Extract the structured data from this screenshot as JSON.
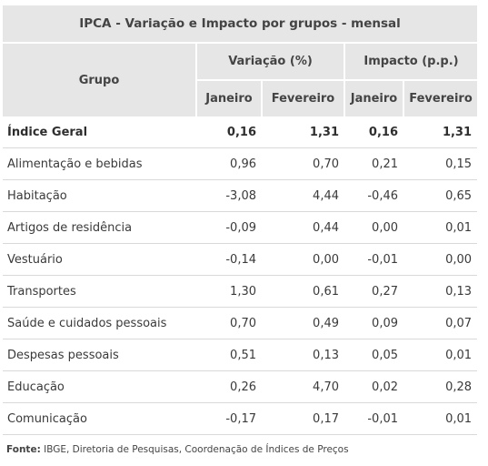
{
  "table": {
    "title": "IPCA - Variação e Impacto por grupos - mensal",
    "header_group": "Grupo",
    "header_variacao": "Variação (%)",
    "header_impacto": "Impacto (p.p.)",
    "sub_headers": [
      "Janeiro",
      "Fevereiro",
      "Janeiro",
      "Fevereiro"
    ],
    "rows": [
      {
        "grupo": "Índice Geral",
        "var_jan": "0,16",
        "var_fev": "1,31",
        "imp_jan": "0,16",
        "imp_fev": "1,31"
      },
      {
        "grupo": "Alimentação e bebidas",
        "var_jan": "0,96",
        "var_fev": "0,70",
        "imp_jan": "0,21",
        "imp_fev": "0,15"
      },
      {
        "grupo": "Habitação",
        "var_jan": "-3,08",
        "var_fev": "4,44",
        "imp_jan": "-0,46",
        "imp_fev": "0,65"
      },
      {
        "grupo": "Artigos de residência",
        "var_jan": "-0,09",
        "var_fev": "0,44",
        "imp_jan": "0,00",
        "imp_fev": "0,01"
      },
      {
        "grupo": "Vestuário",
        "var_jan": "-0,14",
        "var_fev": "0,00",
        "imp_jan": "-0,01",
        "imp_fev": "0,00"
      },
      {
        "grupo": "Transportes",
        "var_jan": "1,30",
        "var_fev": "0,61",
        "imp_jan": "0,27",
        "imp_fev": "0,13"
      },
      {
        "grupo": "Saúde e cuidados pessoais",
        "var_jan": "0,70",
        "var_fev": "0,49",
        "imp_jan": "0,09",
        "imp_fev": "0,07"
      },
      {
        "grupo": "Despesas pessoais",
        "var_jan": "0,51",
        "var_fev": "0,13",
        "imp_jan": "0,05",
        "imp_fev": "0,01"
      },
      {
        "grupo": "Educação",
        "var_jan": "0,26",
        "var_fev": "4,70",
        "imp_jan": "0,02",
        "imp_fev": "0,28"
      },
      {
        "grupo": "Comunicação",
        "var_jan": "-0,17",
        "var_fev": "0,17",
        "imp_jan": "-0,01",
        "imp_fev": "0,01"
      }
    ]
  },
  "source": {
    "label": "Fonte:",
    "text": " IBGE, Diretoria de Pesquisas, Coordenação de Índices de Preços"
  },
  "colors": {
    "header_bg": "#e6e6e6",
    "row_divider": "#d9d9d9",
    "text": "#3a3a3a"
  }
}
